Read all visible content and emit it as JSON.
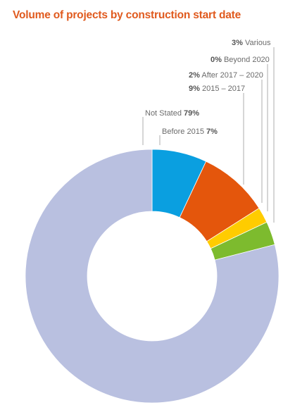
{
  "chart_data": {
    "type": "pie",
    "title": "Volume of projects by construction start date",
    "style": "donut",
    "slices": [
      {
        "label": "Before 2015",
        "value": 7,
        "value_text": "7%",
        "color": "#0a9fe0"
      },
      {
        "label": "2015 – 2017",
        "value": 9,
        "value_text": "9%",
        "color": "#e4560c"
      },
      {
        "label": "After 2017 – 2020",
        "value": 2,
        "value_text": "2%",
        "color": "#ffcc00"
      },
      {
        "label": "Beyond 2020",
        "value": 0,
        "value_text": "0%",
        "color": "#8a8a8a"
      },
      {
        "label": "Various",
        "value": 3,
        "value_text": "3%",
        "color": "#7dbb2e"
      },
      {
        "label": "Not Stated",
        "value": 79,
        "value_text": "79%",
        "color": "#b9c0e0"
      }
    ],
    "legend": "callout labels with leader lines"
  }
}
